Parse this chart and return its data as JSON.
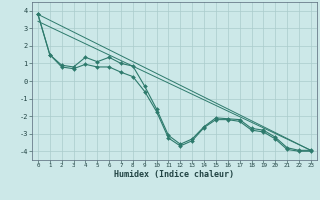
{
  "xlabel": "Humidex (Indice chaleur)",
  "x": [
    0,
    1,
    2,
    3,
    4,
    5,
    6,
    7,
    8,
    9,
    10,
    11,
    12,
    13,
    14,
    15,
    16,
    17,
    18,
    19,
    20,
    21,
    22,
    23
  ],
  "line1": [
    3.8,
    1.5,
    0.9,
    0.8,
    1.35,
    1.1,
    1.35,
    1.0,
    0.85,
    -0.3,
    -1.6,
    -3.1,
    -3.6,
    -3.3,
    -2.6,
    -2.1,
    -2.15,
    -2.2,
    -2.7,
    -2.8,
    -3.2,
    -3.8,
    -3.95,
    -3.95
  ],
  "line2": [
    3.8,
    1.5,
    0.8,
    0.7,
    0.95,
    0.8,
    0.8,
    0.5,
    0.25,
    -0.6,
    -1.75,
    -3.25,
    -3.7,
    -3.4,
    -2.65,
    -2.2,
    -2.2,
    -2.3,
    -2.8,
    -2.9,
    -3.3,
    -3.9,
    -4.0,
    -4.0
  ],
  "line3_x": [
    0,
    23
  ],
  "line3_y": [
    3.8,
    -3.95
  ],
  "line4_x": [
    0,
    23
  ],
  "line4_y": [
    3.4,
    -3.95
  ],
  "ylim": [
    -4.5,
    4.5
  ],
  "xlim": [
    -0.5,
    23.5
  ],
  "bg_color": "#cce8e8",
  "grid_color": "#aacccc",
  "line_color": "#2d7a6c",
  "yticks": [
    -4,
    -3,
    -2,
    -1,
    0,
    1,
    2,
    3,
    4
  ],
  "xticks": [
    0,
    1,
    2,
    3,
    4,
    5,
    6,
    7,
    8,
    9,
    10,
    11,
    12,
    13,
    14,
    15,
    16,
    17,
    18,
    19,
    20,
    21,
    22,
    23
  ]
}
